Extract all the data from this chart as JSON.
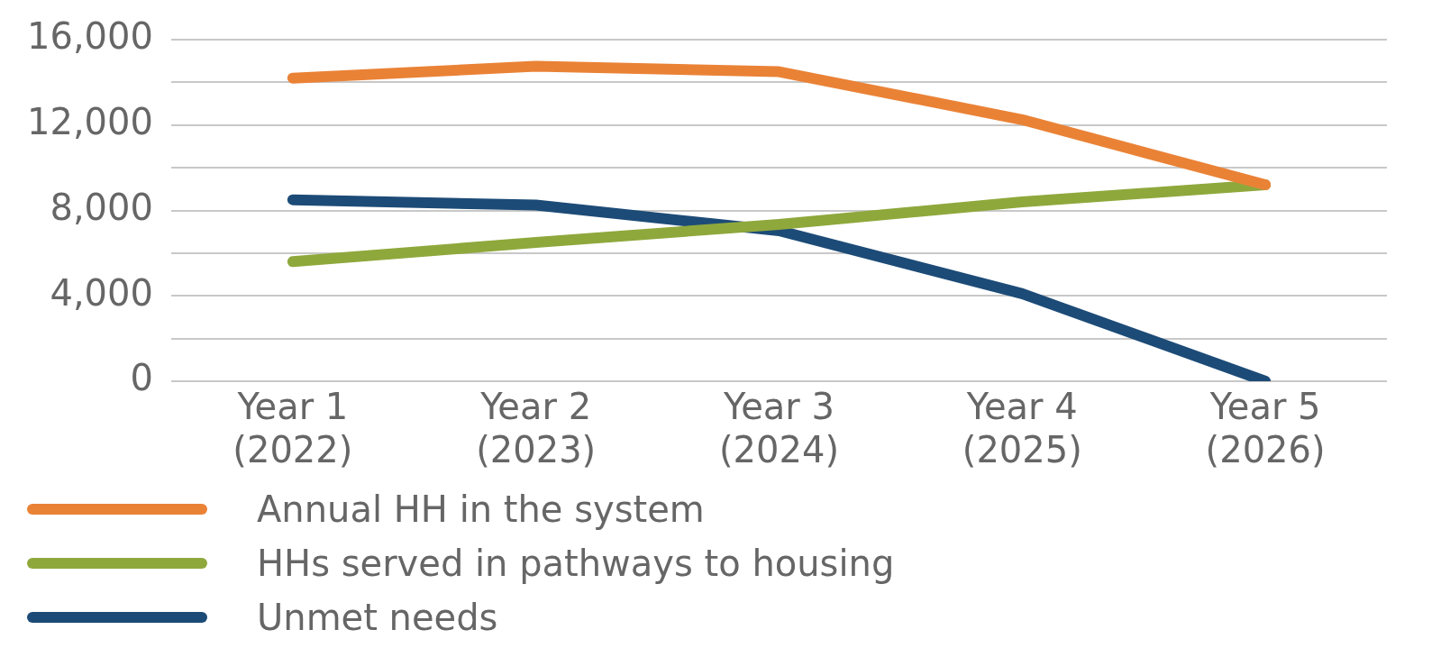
{
  "chart_data": {
    "type": "line",
    "categories": [
      "Year 1\n(2022)",
      "Year 2\n(2023)",
      "Year 3\n(2024)",
      "Year 4\n(2025)",
      "Year 5\n(2026)"
    ],
    "series": [
      {
        "name": "Annual HH in the system",
        "color": "#ea8236",
        "values": [
          14200,
          14750,
          14500,
          12250,
          9200
        ]
      },
      {
        "name": "HHs served in pathways to housing",
        "color": "#8fa83c",
        "values": [
          5600,
          6500,
          7350,
          8400,
          9200
        ]
      },
      {
        "name": "Unmet needs",
        "color": "#1d4b77",
        "values": [
          8500,
          8250,
          7050,
          4100,
          0
        ]
      }
    ],
    "ylim": [
      0,
      16000
    ],
    "yticks": [
      0,
      {
        "value": 2000,
        "label": null
      },
      {
        "value": 4000,
        "label": "4,000"
      },
      {
        "value": 6000,
        "label": null
      },
      {
        "value": 8000,
        "label": "8,000"
      },
      {
        "value": 10000,
        "label": null
      },
      {
        "value": 12000,
        "label": "12,000"
      },
      {
        "value": 14000,
        "label": null
      },
      {
        "value": 16000,
        "label": "16,000"
      }
    ],
    "grid": "y",
    "legend": "bottom left",
    "marker": "none",
    "line_style": "solid"
  }
}
